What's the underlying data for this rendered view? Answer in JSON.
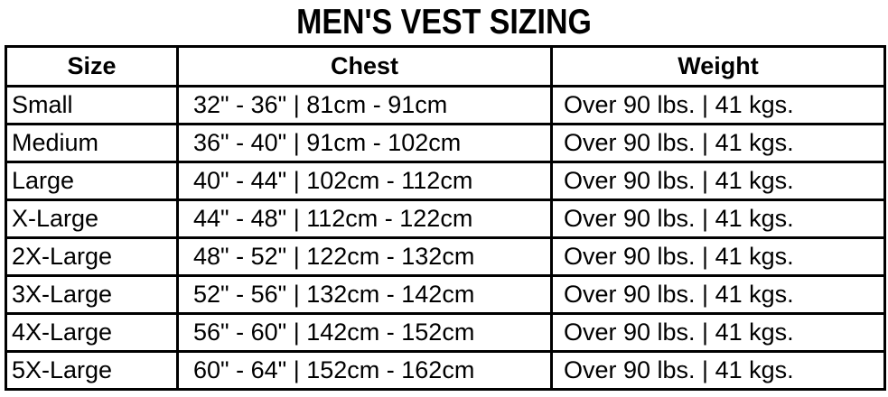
{
  "title": "MEN'S VEST SIZING",
  "colors": {
    "text": "#000000",
    "border": "#000000",
    "background": "#ffffff"
  },
  "table": {
    "headers": {
      "size": "Size",
      "chest": "Chest",
      "weight": "Weight"
    },
    "rows": [
      {
        "size": "Small",
        "chest": "32\" - 36\" | 81cm - 91cm",
        "weight": "Over 90 lbs. | 41 kgs."
      },
      {
        "size": "Medium",
        "chest": "36\" - 40\" | 91cm - 102cm",
        "weight": "Over 90 lbs. | 41 kgs."
      },
      {
        "size": "Large",
        "chest": "40\" - 44\" | 102cm - 112cm",
        "weight": "Over 90 lbs. | 41 kgs."
      },
      {
        "size": "X-Large",
        "chest": "44\" - 48\" | 112cm - 122cm",
        "weight": "Over 90 lbs. | 41 kgs."
      },
      {
        "size": "2X-Large",
        "chest": "48\" - 52\" | 122cm - 132cm",
        "weight": "Over 90 lbs. | 41 kgs."
      },
      {
        "size": "3X-Large",
        "chest": "52\" - 56\" | 132cm - 142cm",
        "weight": "Over 90 lbs. | 41 kgs."
      },
      {
        "size": "4X-Large",
        "chest": "56\" - 60\" | 142cm - 152cm",
        "weight": "Over 90 lbs. | 41 kgs."
      },
      {
        "size": "5X-Large",
        "chest": "60\" - 64\" | 152cm - 162cm",
        "weight": "Over 90 lbs. | 41 kgs."
      }
    ]
  }
}
